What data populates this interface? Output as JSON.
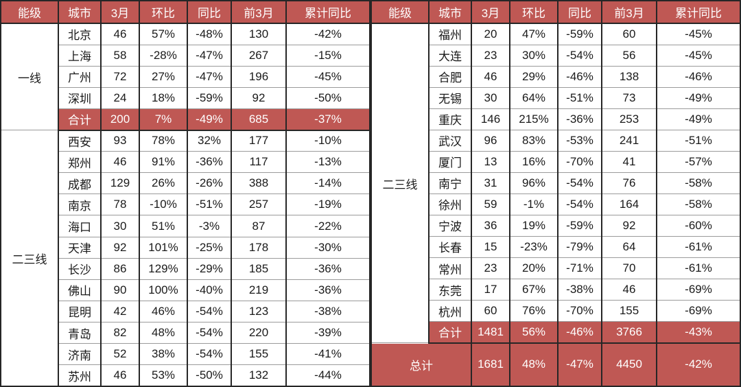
{
  "colors": {
    "accent_red": "#BF5854",
    "header_text": "#FFFFFF",
    "body_text": "#1A1A1A",
    "grid_heavy": "#262626",
    "grid_light": "#9A9A9A"
  },
  "chart_data": {
    "type": "table",
    "columns": [
      "能级",
      "城市",
      "3月",
      "环比",
      "同比",
      "前3月",
      "累计同比"
    ],
    "tables": [
      {
        "name": "left-panel",
        "groups": [
          {
            "tier": "一线",
            "rows": [
              {
                "city": "北京",
                "values": [
                  "46",
                  "57%",
                  "-48%",
                  "130",
                  "-42%"
                ]
              },
              {
                "city": "上海",
                "values": [
                  "58",
                  "-28%",
                  "-47%",
                  "267",
                  "-15%"
                ]
              },
              {
                "city": "广州",
                "values": [
                  "72",
                  "27%",
                  "-47%",
                  "196",
                  "-45%"
                ]
              },
              {
                "city": "深圳",
                "values": [
                  "24",
                  "18%",
                  "-59%",
                  "92",
                  "-50%"
                ]
              },
              {
                "city": "合计",
                "values": [
                  "200",
                  "7%",
                  "-49%",
                  "685",
                  "-37%"
                ],
                "highlight": true
              }
            ]
          },
          {
            "tier": "二三线",
            "rows": [
              {
                "city": "西安",
                "values": [
                  "93",
                  "78%",
                  "32%",
                  "177",
                  "-10%"
                ]
              },
              {
                "city": "郑州",
                "values": [
                  "46",
                  "91%",
                  "-36%",
                  "117",
                  "-13%"
                ]
              },
              {
                "city": "成都",
                "values": [
                  "129",
                  "26%",
                  "-26%",
                  "388",
                  "-14%"
                ]
              },
              {
                "city": "南京",
                "values": [
                  "78",
                  "-10%",
                  "-51%",
                  "257",
                  "-19%"
                ]
              },
              {
                "city": "海口",
                "values": [
                  "30",
                  "51%",
                  "-3%",
                  "87",
                  "-22%"
                ]
              },
              {
                "city": "天津",
                "values": [
                  "92",
                  "101%",
                  "-25%",
                  "178",
                  "-30%"
                ]
              },
              {
                "city": "长沙",
                "values": [
                  "86",
                  "129%",
                  "-29%",
                  "185",
                  "-36%"
                ]
              },
              {
                "city": "佛山",
                "values": [
                  "90",
                  "100%",
                  "-40%",
                  "219",
                  "-36%"
                ]
              },
              {
                "city": "昆明",
                "values": [
                  "42",
                  "46%",
                  "-54%",
                  "123",
                  "-38%"
                ]
              },
              {
                "city": "青岛",
                "values": [
                  "82",
                  "48%",
                  "-54%",
                  "220",
                  "-39%"
                ]
              },
              {
                "city": "济南",
                "values": [
                  "52",
                  "38%",
                  "-54%",
                  "155",
                  "-41%"
                ]
              },
              {
                "city": "苏州",
                "values": [
                  "46",
                  "53%",
                  "-50%",
                  "132",
                  "-44%"
                ]
              }
            ]
          }
        ]
      },
      {
        "name": "right-panel",
        "groups": [
          {
            "tier": "二三线",
            "rows": [
              {
                "city": "福州",
                "values": [
                  "20",
                  "47%",
                  "-59%",
                  "60",
                  "-45%"
                ]
              },
              {
                "city": "大连",
                "values": [
                  "23",
                  "30%",
                  "-54%",
                  "56",
                  "-45%"
                ]
              },
              {
                "city": "合肥",
                "values": [
                  "46",
                  "29%",
                  "-46%",
                  "138",
                  "-46%"
                ]
              },
              {
                "city": "无锡",
                "values": [
                  "30",
                  "64%",
                  "-51%",
                  "73",
                  "-49%"
                ]
              },
              {
                "city": "重庆",
                "values": [
                  "146",
                  "215%",
                  "-36%",
                  "253",
                  "-49%"
                ]
              },
              {
                "city": "武汉",
                "values": [
                  "96",
                  "83%",
                  "-53%",
                  "241",
                  "-51%"
                ]
              },
              {
                "city": "厦门",
                "values": [
                  "13",
                  "16%",
                  "-70%",
                  "41",
                  "-57%"
                ]
              },
              {
                "city": "南宁",
                "values": [
                  "31",
                  "96%",
                  "-54%",
                  "76",
                  "-58%"
                ]
              },
              {
                "city": "徐州",
                "values": [
                  "59",
                  "-1%",
                  "-54%",
                  "164",
                  "-58%"
                ]
              },
              {
                "city": "宁波",
                "values": [
                  "36",
                  "19%",
                  "-59%",
                  "92",
                  "-60%"
                ]
              },
              {
                "city": "长春",
                "values": [
                  "15",
                  "-23%",
                  "-79%",
                  "64",
                  "-61%"
                ]
              },
              {
                "city": "常州",
                "values": [
                  "23",
                  "20%",
                  "-71%",
                  "70",
                  "-61%"
                ]
              },
              {
                "city": "东莞",
                "values": [
                  "17",
                  "67%",
                  "-38%",
                  "46",
                  "-69%"
                ]
              },
              {
                "city": "杭州",
                "values": [
                  "60",
                  "76%",
                  "-70%",
                  "155",
                  "-69%"
                ]
              },
              {
                "city": "合计",
                "values": [
                  "1481",
                  "56%",
                  "-46%",
                  "3766",
                  "-43%"
                ],
                "highlight": true
              }
            ]
          }
        ],
        "grand_total": {
          "label": "总计",
          "values": [
            "1681",
            "48%",
            "-47%",
            "4450",
            "-42%"
          ]
        }
      }
    ]
  }
}
